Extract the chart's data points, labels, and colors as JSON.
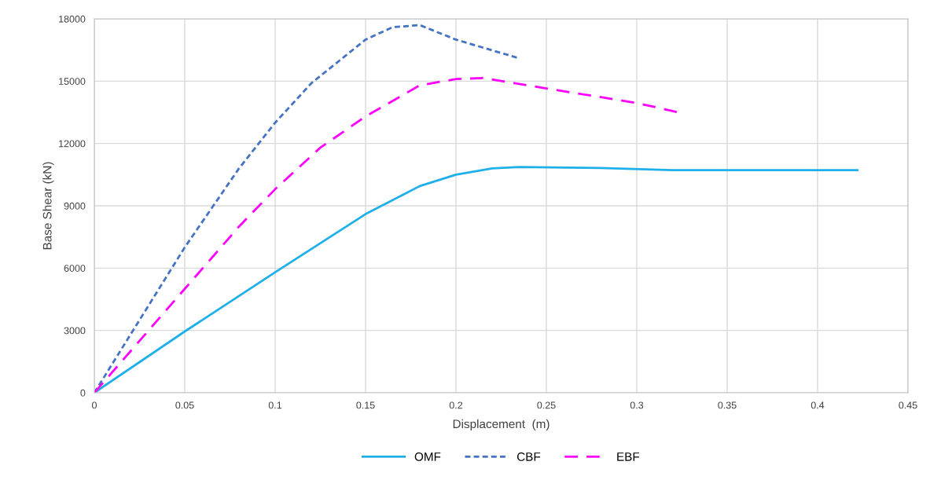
{
  "chart_data": {
    "type": "line",
    "xlabel": "Displacement  (m)",
    "ylabel": "Base Shear (kN)",
    "xlim": [
      0,
      0.45
    ],
    "xticks": [
      0,
      0.05,
      0.1,
      0.15,
      0.2,
      0.25,
      0.3,
      0.35,
      0.4,
      0.45
    ],
    "ylim": [
      0,
      18000
    ],
    "yticks": [
      0,
      3000,
      6000,
      9000,
      12000,
      15000,
      18000
    ],
    "grid": true,
    "legend": "bottom",
    "series": [
      {
        "name": "OMF",
        "color": "#1fb0ea",
        "line_style": "solid",
        "x": [
          0,
          0.05,
          0.1,
          0.15,
          0.18,
          0.2,
          0.22,
          0.235,
          0.28,
          0.32,
          0.35,
          0.422
        ],
        "values": [
          0,
          2950,
          5800,
          8600,
          9950,
          10500,
          10800,
          10870,
          10820,
          10720,
          10720,
          10720
        ]
      },
      {
        "name": "CBF",
        "color": "#4472c4",
        "line_style": "dotted",
        "x": [
          0,
          0.02,
          0.05,
          0.08,
          0.1,
          0.12,
          0.15,
          0.165,
          0.18,
          0.2,
          0.235
        ],
        "values": [
          0,
          2800,
          7000,
          10800,
          13000,
          14900,
          17000,
          17600,
          17700,
          17000,
          16100
        ]
      },
      {
        "name": "EBF",
        "color": "#ff00ff",
        "line_style": "dashed",
        "x": [
          0,
          0.05,
          0.08,
          0.1,
          0.125,
          0.15,
          0.18,
          0.2,
          0.215,
          0.25,
          0.3,
          0.323
        ],
        "values": [
          0,
          5000,
          8000,
          9800,
          11800,
          13300,
          14800,
          15100,
          15150,
          14650,
          13950,
          13500
        ]
      }
    ]
  }
}
